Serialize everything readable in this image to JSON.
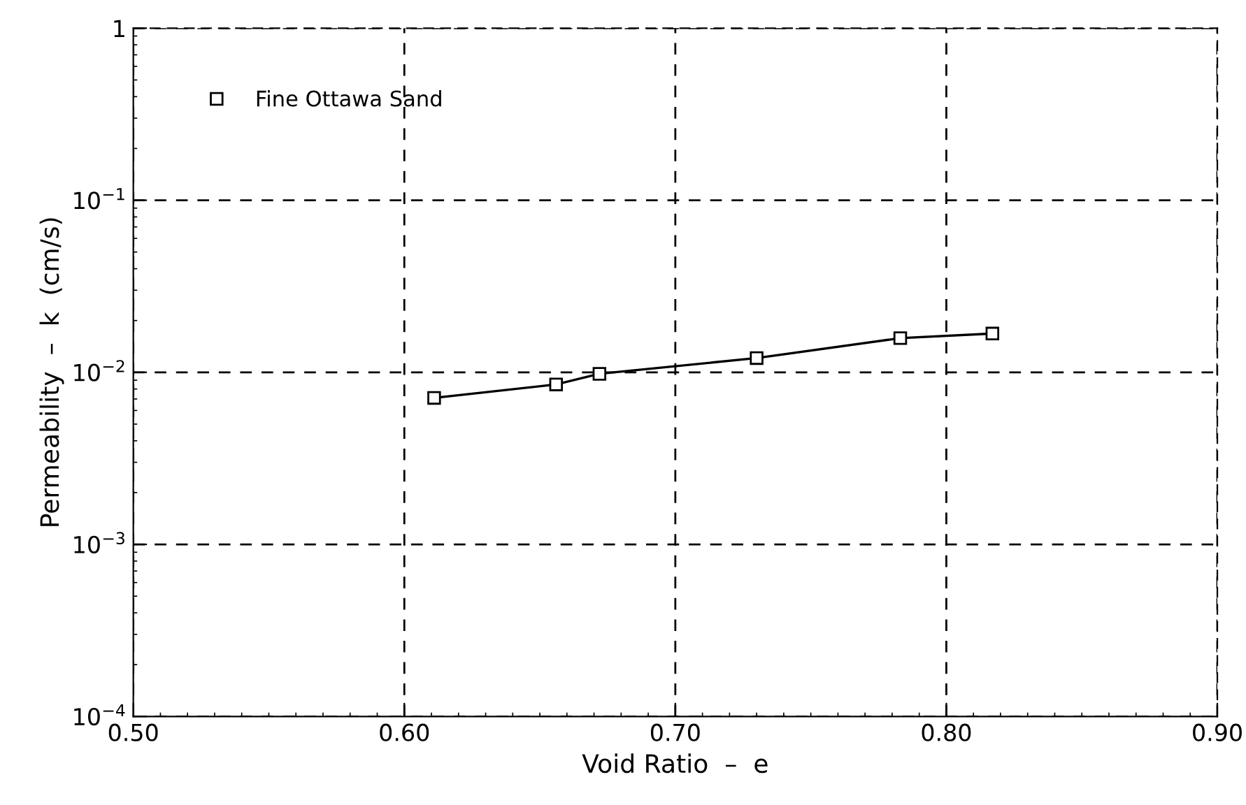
{
  "chart_data": {
    "type": "line",
    "xlabel": "Void Ratio  –  e",
    "ylabel": "Permeability  –  k  (cm/s)",
    "x": [
      0.611,
      0.656,
      0.672,
      0.73,
      0.783,
      0.817
    ],
    "series": [
      {
        "name": "Fine Ottawa Sand",
        "color": "#000000",
        "values": [
          0.0071,
          0.0085,
          0.0098,
          0.0121,
          0.0158,
          0.0168
        ]
      }
    ],
    "xlim": [
      0.5,
      0.9
    ],
    "xticks": [
      {
        "value": 0.5,
        "label": "0.50"
      },
      {
        "value": 0.6,
        "label": "0.60"
      },
      {
        "value": 0.7,
        "label": "0.70"
      },
      {
        "value": 0.8,
        "label": "0.80"
      },
      {
        "value": 0.9,
        "label": "0.90"
      }
    ],
    "ylim": [
      0.0001,
      1
    ],
    "yticks": [
      {
        "value": 0.0001,
        "label": "10$^{−4}$"
      },
      {
        "value": 0.001,
        "label": "10$^{−3}$"
      },
      {
        "value": 0.01,
        "label": "10$^{−2}$"
      },
      {
        "value": 0.1,
        "label": "10$^{−1}$"
      },
      {
        "value": 1,
        "label": "1"
      }
    ],
    "log": "y",
    "grid": true,
    "legend": "top left",
    "marker": "square",
    "line_style": "solid"
  }
}
